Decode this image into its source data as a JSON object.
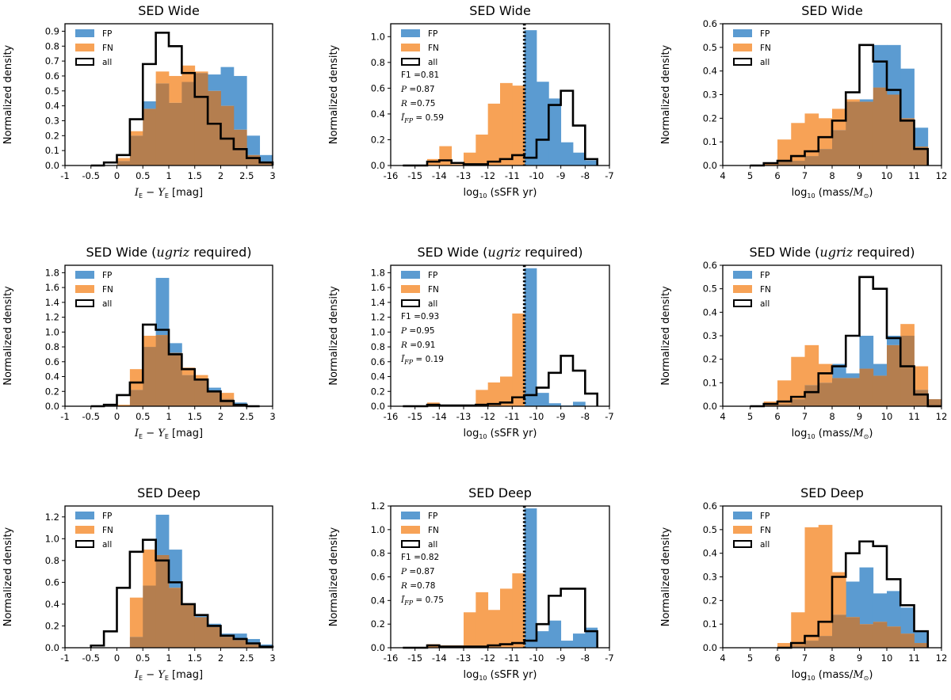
{
  "colors": {
    "fp": "#5b9bd1",
    "fn": "#f7a256",
    "overlap": "#b47e4f",
    "all": "#000000",
    "threshold": "#000000"
  },
  "legend": [
    "FP",
    "FN",
    "all"
  ],
  "axis_labels": {
    "color": {
      "pre": "I",
      "sub1": "E",
      "mid": " − Y",
      "sub2": "E",
      "post": " [mag]"
    },
    "ssfr": {
      "pre": "log",
      "sub": "10",
      "post": " (sSFR yr)"
    },
    "mass": {
      "pre": "log",
      "sub": "10",
      "post": " (mass/",
      "msym": "M",
      "msub": "⊙",
      "close": ")"
    },
    "ylabel": "Normalized density"
  },
  "chart_data": [
    {
      "id": "p00",
      "type": "histogram",
      "title": "SED Wide",
      "kind": "color",
      "xlim": [
        -1,
        3
      ],
      "ylim": [
        0,
        0.95
      ],
      "ytick_decimals": 1,
      "xticks": [
        -1,
        -0.5,
        0,
        0.5,
        1,
        1.5,
        2,
        2.5,
        3
      ],
      "xtick_labels": [
        "-1",
        "-0.5",
        "0",
        "0.5",
        "1",
        "1.5",
        "2",
        "2.5",
        "3"
      ],
      "yticks": [
        0,
        0.1,
        0.2,
        0.3,
        0.4,
        0.5,
        0.6,
        0.7,
        0.8,
        0.9
      ],
      "edges": [
        -0.5,
        -0.25,
        0,
        0.25,
        0.5,
        0.75,
        1,
        1.25,
        1.5,
        1.75,
        2,
        2.25,
        2.5,
        2.75,
        3
      ],
      "fp": [
        0,
        0,
        0.03,
        0.2,
        0.43,
        0.55,
        0.42,
        0.56,
        0.62,
        0.61,
        0.66,
        0.6,
        0.2,
        0.07
      ],
      "fn": [
        0,
        0,
        0.05,
        0.23,
        0.38,
        0.63,
        0.6,
        0.67,
        0.63,
        0.5,
        0.4,
        0.24,
        0.07,
        0.02
      ],
      "all": [
        0,
        0.02,
        0.07,
        0.31,
        0.68,
        0.89,
        0.8,
        0.62,
        0.46,
        0.28,
        0.18,
        0.11,
        0.05,
        0.02
      ]
    },
    {
      "id": "p01",
      "type": "histogram",
      "title": "SED Wide",
      "kind": "ssfr",
      "xlim": [
        -16,
        -7
      ],
      "ylim": [
        0,
        1.1
      ],
      "ytick_decimals": 1,
      "xticks": [
        -16,
        -15,
        -14,
        -13,
        -12,
        -11,
        -10,
        -9,
        -8,
        -7
      ],
      "xtick_labels": [
        "-16",
        "-15",
        "-14",
        "-13",
        "-12",
        "-11",
        "-10",
        "-9",
        "-8",
        "-7"
      ],
      "yticks": [
        0,
        0.2,
        0.4,
        0.6,
        0.8,
        1.0
      ],
      "threshold": -10.5,
      "edges": [
        -15.5,
        -15,
        -14.5,
        -14,
        -13.5,
        -13,
        -12.5,
        -12,
        -11.5,
        -11,
        -10.5,
        -10,
        -9.5,
        -9,
        -8.5,
        -8,
        -7.5
      ],
      "fp": [
        0,
        0,
        0,
        0,
        0,
        0,
        0,
        0,
        0,
        0,
        1.05,
        0.65,
        0.52,
        0.18,
        0.1,
        0.04
      ],
      "fn": [
        0,
        0,
        0.05,
        0.15,
        0.01,
        0.1,
        0.24,
        0.48,
        0.64,
        0.62,
        0,
        0,
        0,
        0,
        0,
        0
      ],
      "all": [
        0,
        0,
        0.03,
        0.04,
        0.02,
        0.01,
        0.01,
        0.03,
        0.05,
        0.08,
        0.06,
        0.2,
        0.47,
        0.58,
        0.31,
        0.05
      ],
      "stats": {
        "f1_label": "F1",
        "f1": "=0.81",
        "p_label": "P",
        "p": "=0.87",
        "r_label": "R",
        "r": "=0.75",
        "i_label": "Ī",
        "i_sub": "FP",
        "i": "= 0.59"
      }
    },
    {
      "id": "p02",
      "type": "histogram",
      "title": "SED Wide",
      "kind": "mass",
      "xlim": [
        4,
        12
      ],
      "ylim": [
        0,
        0.6
      ],
      "ytick_decimals": 1,
      "xticks": [
        4,
        5,
        6,
        7,
        8,
        9,
        10,
        11,
        12
      ],
      "xtick_labels": [
        "4",
        "5",
        "6",
        "7",
        "8",
        "9",
        "10",
        "11",
        "12"
      ],
      "yticks": [
        0,
        0.1,
        0.2,
        0.3,
        0.4,
        0.5,
        0.6
      ],
      "edges": [
        5,
        5.5,
        6,
        6.5,
        7,
        7.5,
        8,
        8.5,
        9,
        9.5,
        10,
        10.5,
        11,
        11.5
      ],
      "fp": [
        0,
        0,
        0.02,
        0.02,
        0.04,
        0.07,
        0.15,
        0.27,
        0.28,
        0.51,
        0.51,
        0.41,
        0.16
      ],
      "fn": [
        0,
        0.01,
        0.11,
        0.18,
        0.22,
        0.2,
        0.24,
        0.28,
        0.27,
        0.33,
        0.3,
        0.2,
        0.08
      ],
      "all": [
        0,
        0.01,
        0.02,
        0.04,
        0.06,
        0.12,
        0.19,
        0.31,
        0.51,
        0.44,
        0.32,
        0.19,
        0.07
      ]
    },
    {
      "id": "p10",
      "type": "histogram",
      "title": "SED Wide",
      "title_math": "ugriz",
      "title_post": " required)",
      "kind": "color",
      "xlim": [
        -1,
        3
      ],
      "ylim": [
        0,
        1.9
      ],
      "ytick_decimals": 1,
      "xticks": [
        -1,
        -0.5,
        0,
        0.5,
        1,
        1.5,
        2,
        2.5,
        3
      ],
      "xtick_labels": [
        "-1",
        "-0.5",
        "0",
        "0.5",
        "1",
        "1.5",
        "2",
        "2.5",
        "3"
      ],
      "yticks": [
        0,
        0.2,
        0.4,
        0.6,
        0.8,
        1.0,
        1.2,
        1.4,
        1.6,
        1.8
      ],
      "edges": [
        -0.5,
        -0.25,
        0,
        0.25,
        0.5,
        0.75,
        1,
        1.25,
        1.5,
        1.75,
        2,
        2.25,
        2.5,
        2.75
      ],
      "fp": [
        0,
        0,
        0,
        0.22,
        0.8,
        1.73,
        0.85,
        0.42,
        0.35,
        0.25,
        0.1,
        0.05,
        0
      ],
      "fn": [
        0,
        0,
        0.02,
        0.5,
        0.95,
        0.96,
        0.72,
        0.52,
        0.42,
        0.2,
        0.18,
        0.02,
        0
      ],
      "all": [
        0,
        0.02,
        0.15,
        0.32,
        1.1,
        1.03,
        0.7,
        0.5,
        0.36,
        0.2,
        0.07,
        0.02,
        0
      ]
    },
    {
      "id": "p11",
      "type": "histogram",
      "title": "SED Wide",
      "title_math": "ugriz",
      "title_post": " required)",
      "kind": "ssfr",
      "xlim": [
        -16,
        -7
      ],
      "ylim": [
        0,
        1.9
      ],
      "ytick_decimals": 1,
      "xticks": [
        -16,
        -15,
        -14,
        -13,
        -12,
        -11,
        -10,
        -9,
        -8,
        -7
      ],
      "xtick_labels": [
        "-16",
        "-15",
        "-14",
        "-13",
        "-12",
        "-11",
        "-10",
        "-9",
        "-8",
        "-7"
      ],
      "yticks": [
        0,
        0.2,
        0.4,
        0.6,
        0.8,
        1.0,
        1.2,
        1.4,
        1.6,
        1.8
      ],
      "threshold": -10.5,
      "edges": [
        -15.5,
        -15,
        -14.5,
        -14,
        -13.5,
        -13,
        -12.5,
        -12,
        -11.5,
        -11,
        -10.5,
        -10,
        -9.5,
        -9,
        -8.5,
        -8,
        -7.5
      ],
      "fp": [
        0,
        0,
        0,
        0,
        0,
        0,
        0,
        0,
        0,
        0,
        1.86,
        0.18,
        0.04,
        0.01,
        0.06,
        0
      ],
      "fn": [
        0,
        0,
        0.05,
        0.01,
        0.02,
        0.02,
        0.22,
        0.32,
        0.4,
        1.25,
        0,
        0,
        0,
        0,
        0,
        0
      ],
      "all": [
        0,
        0,
        0.02,
        0.01,
        0.01,
        0.01,
        0.02,
        0.03,
        0.05,
        0.12,
        0.15,
        0.25,
        0.45,
        0.68,
        0.48,
        0.17
      ],
      "stats": {
        "f1_label": "F1",
        "f1": "=0.93",
        "p_label": "P",
        "p": "=0.95",
        "r_label": "R",
        "r": "=0.91",
        "i_label": "Ī",
        "i_sub": "FP",
        "i": "= 0.19"
      }
    },
    {
      "id": "p12",
      "type": "histogram",
      "title": "SED Wide",
      "title_math": "ugriz",
      "title_post": " required)",
      "kind": "mass",
      "xlim": [
        4,
        12
      ],
      "ylim": [
        0,
        0.6
      ],
      "ytick_decimals": 1,
      "xticks": [
        4,
        5,
        6,
        7,
        8,
        9,
        10,
        11,
        12
      ],
      "xtick_labels": [
        "4",
        "5",
        "6",
        "7",
        "8",
        "9",
        "10",
        "11",
        "12"
      ],
      "yticks": [
        0,
        0.1,
        0.2,
        0.3,
        0.4,
        0.5,
        0.6
      ],
      "edges": [
        5,
        5.5,
        6,
        6.5,
        7,
        7.5,
        8,
        8.5,
        9,
        9.5,
        10,
        10.5,
        11,
        11.5,
        12
      ],
      "fp": [
        0,
        0.01,
        0.01,
        0.03,
        0.09,
        0.1,
        0.18,
        0.14,
        0.3,
        0.18,
        0.3,
        0.3,
        0.07,
        0.03
      ],
      "fn": [
        0,
        0.02,
        0.11,
        0.21,
        0.26,
        0.18,
        0.12,
        0.12,
        0.16,
        0.13,
        0.26,
        0.35,
        0.17,
        0.03
      ],
      "all": [
        0,
        0.01,
        0.02,
        0.04,
        0.06,
        0.14,
        0.17,
        0.3,
        0.55,
        0.5,
        0.29,
        0.17,
        0.05,
        0
      ]
    },
    {
      "id": "p20",
      "type": "histogram",
      "title": "SED Deep",
      "kind": "color",
      "xlim": [
        -1,
        3
      ],
      "ylim": [
        0,
        1.3
      ],
      "ytick_decimals": 1,
      "xticks": [
        -1,
        -0.5,
        0,
        0.5,
        1,
        1.5,
        2,
        2.5,
        3
      ],
      "xtick_labels": [
        "-1",
        "-0.5",
        "0",
        "0.5",
        "1",
        "1.5",
        "2",
        "2.5",
        "3"
      ],
      "yticks": [
        0,
        0.2,
        0.4,
        0.6,
        0.8,
        1.0,
        1.2
      ],
      "edges": [
        -0.5,
        -0.25,
        0,
        0.25,
        0.5,
        0.75,
        1,
        1.25,
        1.5,
        1.75,
        2,
        2.25,
        2.5,
        2.75,
        3
      ],
      "fp": [
        0,
        0,
        0,
        0.1,
        0.57,
        1.22,
        0.9,
        0.4,
        0.3,
        0.22,
        0.13,
        0.13,
        0.08,
        0.03
      ],
      "fn": [
        0,
        0,
        0,
        0.46,
        0.9,
        0.85,
        0.55,
        0.4,
        0.28,
        0.19,
        0.1,
        0.07,
        0.03,
        0.01
      ],
      "all": [
        0.02,
        0.15,
        0.55,
        0.88,
        0.99,
        0.8,
        0.6,
        0.4,
        0.3,
        0.2,
        0.11,
        0.08,
        0.04,
        0.01
      ]
    },
    {
      "id": "p21",
      "type": "histogram",
      "title": "SED Deep",
      "kind": "ssfr",
      "xlim": [
        -16,
        -7
      ],
      "ylim": [
        0,
        1.2
      ],
      "ytick_decimals": 1,
      "xticks": [
        -16,
        -15,
        -14,
        -13,
        -12,
        -11,
        -10,
        -9,
        -8,
        -7
      ],
      "xtick_labels": [
        "-16",
        "-15",
        "-14",
        "-13",
        "-12",
        "-11",
        "-10",
        "-9",
        "-8",
        "-7"
      ],
      "yticks": [
        0,
        0.2,
        0.4,
        0.6,
        0.8,
        1.0,
        1.2
      ],
      "threshold": -10.5,
      "edges": [
        -15.5,
        -15,
        -14.5,
        -14,
        -13.5,
        -13,
        -12.5,
        -12,
        -11.5,
        -11,
        -10.5,
        -10,
        -9.5,
        -9,
        -8.5,
        -8,
        -7.5
      ],
      "fp": [
        0,
        0,
        0,
        0,
        0,
        0,
        0,
        0,
        0,
        0,
        1.18,
        0.14,
        0.23,
        0.06,
        0.12,
        0.17
      ],
      "fn": [
        0,
        0,
        0.03,
        0.02,
        0.02,
        0.3,
        0.47,
        0.32,
        0.5,
        0.63,
        0,
        0,
        0,
        0,
        0,
        0
      ],
      "all": [
        0,
        0,
        0.02,
        0.01,
        0.01,
        0.01,
        0.01,
        0.02,
        0.03,
        0.04,
        0.06,
        0.2,
        0.44,
        0.5,
        0.5,
        0.14
      ],
      "stats": {
        "f1_label": "F1",
        "f1": "=0.82",
        "p_label": "P",
        "p": "=0.87",
        "r_label": "R",
        "r": "=0.78",
        "i_label": "Ī",
        "i_sub": "FP",
        "i": "= 0.75"
      }
    },
    {
      "id": "p22",
      "type": "histogram",
      "title": "SED Deep",
      "kind": "mass",
      "xlim": [
        4,
        12
      ],
      "ylim": [
        0,
        0.6
      ],
      "ytick_decimals": 1,
      "xticks": [
        4,
        5,
        6,
        7,
        8,
        9,
        10,
        11,
        12
      ],
      "xtick_labels": [
        "4",
        "5",
        "6",
        "7",
        "8",
        "9",
        "10",
        "11",
        "12"
      ],
      "yticks": [
        0,
        0.1,
        0.2,
        0.3,
        0.4,
        0.5,
        0.6
      ],
      "edges": [
        6,
        6.5,
        7,
        7.5,
        8,
        8.5,
        9,
        9.5,
        10,
        10.5,
        11,
        11.5
      ],
      "fp": [
        0,
        0.01,
        0.03,
        0.05,
        0.14,
        0.28,
        0.34,
        0.23,
        0.24,
        0.17,
        0.07
      ],
      "fn": [
        0.02,
        0.15,
        0.51,
        0.52,
        0.32,
        0.13,
        0.1,
        0.11,
        0.09,
        0.06,
        0.02
      ],
      "all": [
        0,
        0.02,
        0.05,
        0.11,
        0.3,
        0.4,
        0.45,
        0.43,
        0.29,
        0.18,
        0.07
      ]
    }
  ]
}
